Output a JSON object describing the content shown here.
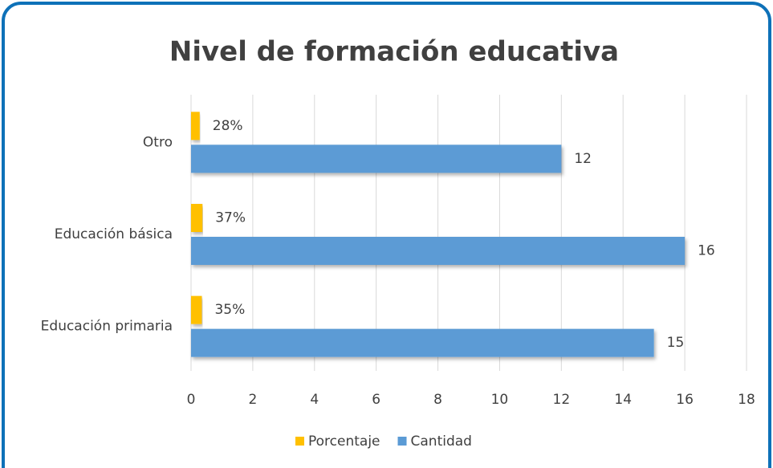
{
  "chart_data": {
    "type": "bar",
    "orientation": "horizontal",
    "title": "Nivel de formación educativa",
    "categories": [
      "Otro",
      "Educación básica",
      "Educación primaria"
    ],
    "series": [
      {
        "name": "Porcentaje",
        "color": "#ffc000",
        "values": [
          0.28,
          0.37,
          0.35
        ],
        "value_labels": [
          "28%",
          "37%",
          "35%"
        ]
      },
      {
        "name": "Cantidad",
        "color": "#5b9bd5",
        "values": [
          12,
          16,
          15
        ]
      }
    ],
    "xlim": [
      0,
      18
    ],
    "xticks": [
      0,
      2,
      4,
      6,
      8,
      10,
      12,
      14,
      16,
      18
    ],
    "grid": true,
    "legend": "bottom"
  }
}
